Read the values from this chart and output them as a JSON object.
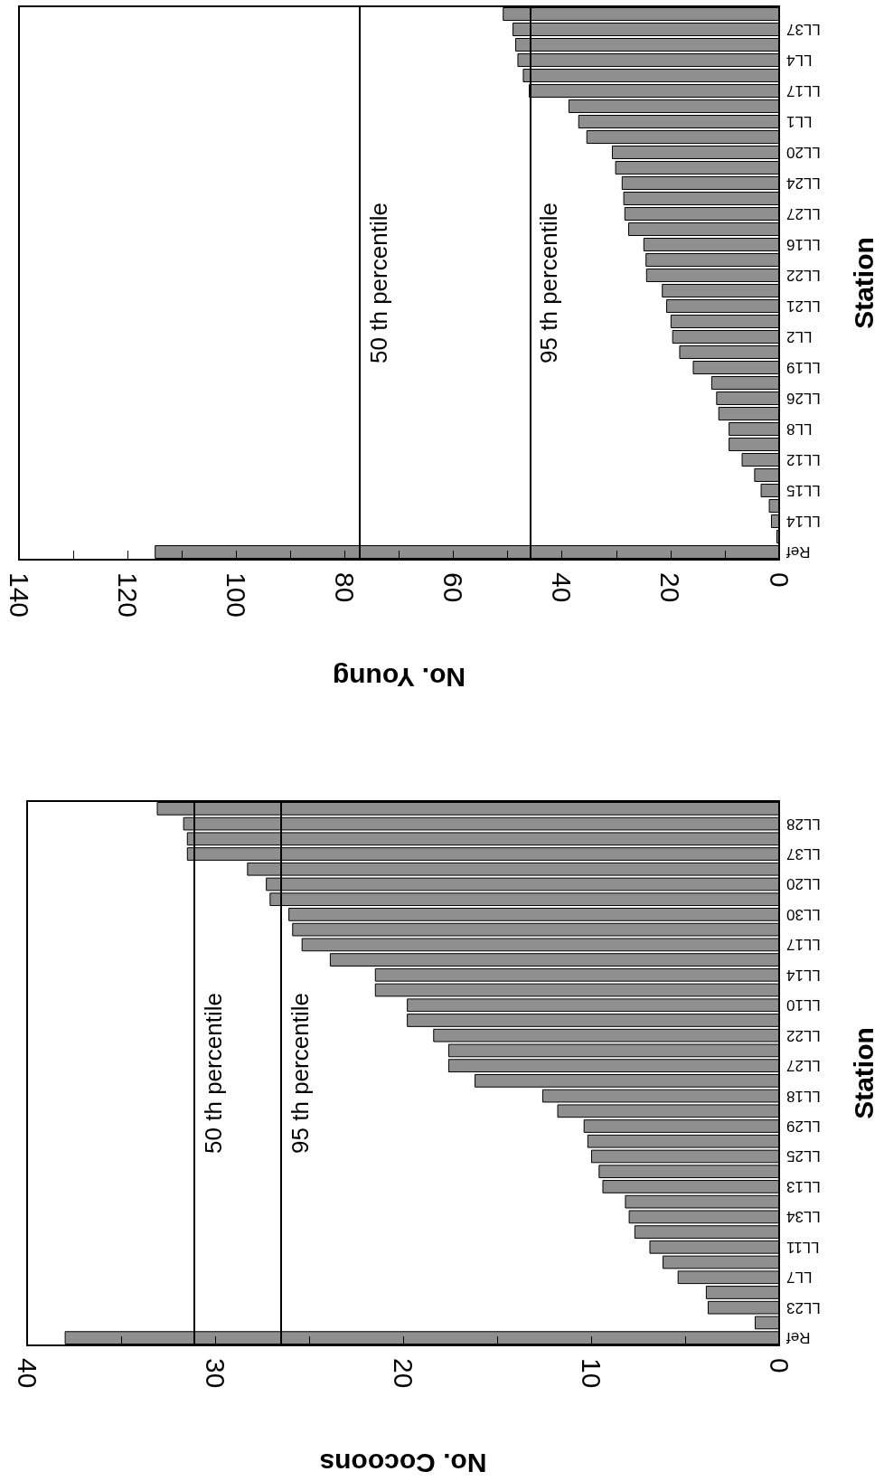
{
  "chart_data": [
    {
      "type": "bar",
      "orientation": "horizontal",
      "xlabel": "No. Cocoons",
      "ylabel": "Station",
      "color": "#8f8f8f",
      "categories": [
        null,
        "LL28",
        null,
        "LL37",
        null,
        "LL20",
        null,
        "LL30",
        null,
        "LL17",
        null,
        "LL14",
        null,
        "LL10",
        null,
        "LL22",
        null,
        "LL27",
        null,
        "LL18",
        null,
        "LL29",
        null,
        "LL25",
        null,
        "LL13",
        null,
        "LL34",
        null,
        "LL11",
        null,
        "LL7",
        null,
        "LL23",
        null,
        "Ref"
      ],
      "values": [
        33.1,
        31.7,
        31.5,
        31.5,
        28.3,
        27.3,
        27.1,
        26.1,
        25.9,
        25.4,
        23.9,
        21.5,
        21.5,
        19.8,
        19.8,
        18.4,
        17.6,
        17.6,
        16.2,
        12.6,
        11.8,
        10.4,
        10.2,
        10.0,
        9.6,
        9.4,
        8.2,
        8.0,
        7.7,
        6.9,
        6.2,
        5.4,
        3.9,
        3.8,
        1.3,
        38.0
      ],
      "xlim": [
        40,
        0
      ],
      "xticks": [
        40,
        {
          "value": 35,
          "label": null
        },
        30,
        {
          "value": 25,
          "label": null
        },
        20,
        {
          "value": 15,
          "label": null
        },
        10,
        {
          "value": 5,
          "label": null
        },
        0
      ],
      "ref_lines": [
        {
          "axis": "x",
          "value": 31.1,
          "label": "50 th percentile",
          "color": "#000000"
        },
        {
          "axis": "x",
          "value": 26.5,
          "label": "95 th percentile",
          "color": "#000000"
        }
      ]
    },
    {
      "type": "bar",
      "orientation": "horizontal",
      "xlabel": "No. Young",
      "ylabel": "Station",
      "color": "#8f8f8f",
      "categories": [
        null,
        "LL37",
        null,
        "LL4",
        null,
        "LL17",
        null,
        "LL1",
        null,
        "LL20",
        null,
        "LL24",
        null,
        "LL27",
        null,
        "LL16",
        null,
        "LL22",
        null,
        "LL21",
        null,
        "LL2",
        null,
        "LL19",
        null,
        "LL26",
        null,
        "LL8",
        null,
        "LL12",
        null,
        "LL15",
        null,
        "LL14",
        null,
        "Ref"
      ],
      "values": [
        50.9,
        49.1,
        48.6,
        48.2,
        47.2,
        46.1,
        38.8,
        37.0,
        35.5,
        30.8,
        30.2,
        29.0,
        28.7,
        28.5,
        27.8,
        25.0,
        24.6,
        24.5,
        21.6,
        20.8,
        20.0,
        19.7,
        18.4,
        15.9,
        12.5,
        11.6,
        11.2,
        9.3,
        9.3,
        6.9,
        4.6,
        3.4,
        1.9,
        1.5,
        0.5,
        115
      ],
      "xlim": [
        140,
        0
      ],
      "xticks": [
        140,
        {
          "value": 130,
          "label": null
        },
        120,
        {
          "value": 110,
          "label": null
        },
        100,
        {
          "value": 90,
          "label": null
        },
        80,
        {
          "value": 70,
          "label": null
        },
        60,
        {
          "value": 50,
          "label": null
        },
        40,
        {
          "value": 30,
          "label": null
        },
        20,
        {
          "value": 10,
          "label": null
        },
        0
      ],
      "ref_lines": [
        {
          "axis": "x",
          "value": 77.3,
          "label": "50 th percentile",
          "color": "#000000"
        },
        {
          "axis": "x",
          "value": 45.9,
          "label": "95 th percentile",
          "color": "#000000"
        }
      ]
    }
  ]
}
